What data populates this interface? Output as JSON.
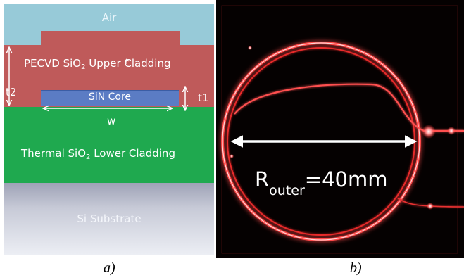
{
  "panel_a": {
    "layers": {
      "air": "Air",
      "upper_main": "PECVD SiO",
      "upper_sub": "2",
      "upper_rest": " Upper Cladding",
      "core": "SiN Core",
      "lower_main": "Thermal SiO",
      "lower_sub": "2",
      "lower_rest": " Lower Cladding",
      "substrate": "Si Substrate"
    },
    "dimensions": {
      "t2": "t2",
      "t1": "t1",
      "w": "w"
    },
    "caption": "a)"
  },
  "panel_b": {
    "radius_main": "R",
    "radius_sub": "outer",
    "radius_rest": "=40mm",
    "caption": "b)"
  },
  "colors": {
    "air": "#97cad8",
    "upper_cladding": "#bf5a5a",
    "core": "#5b7cc4",
    "lower_cladding": "#1fa94f",
    "substrate": "#c7cad7",
    "ring_light": "#ff3b3b"
  }
}
